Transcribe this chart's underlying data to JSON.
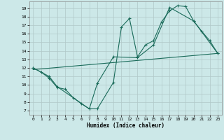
{
  "xlabel": "Humidex (Indice chaleur)",
  "ylabel": "",
  "bg_color": "#cce8e8",
  "grid_color": "#b0c8c8",
  "line_color": "#1a6b5a",
  "xlim": [
    -0.5,
    23.5
  ],
  "ylim": [
    6.5,
    19.8
  ],
  "xticks": [
    0,
    1,
    2,
    3,
    4,
    5,
    6,
    7,
    8,
    9,
    10,
    11,
    12,
    13,
    14,
    15,
    16,
    17,
    18,
    19,
    20,
    21,
    22,
    23
  ],
  "yticks": [
    7,
    8,
    9,
    10,
    11,
    12,
    13,
    14,
    15,
    16,
    17,
    18,
    19
  ],
  "line1_x": [
    0,
    1,
    2,
    3,
    4,
    5,
    6,
    7,
    8,
    10,
    11,
    12,
    13,
    14,
    15,
    16,
    17,
    18,
    19,
    20,
    21,
    22,
    23
  ],
  "line1_y": [
    12,
    11.5,
    10.8,
    9.7,
    9.5,
    8.5,
    7.8,
    7.2,
    7.2,
    10.3,
    16.8,
    17.8,
    13.3,
    14.7,
    15.2,
    17.4,
    18.7,
    19.3,
    19.2,
    17.5,
    16.3,
    15.2,
    13.7
  ],
  "line2_x": [
    0,
    2,
    3,
    7,
    8,
    10,
    13,
    15,
    17,
    20,
    23
  ],
  "line2_y": [
    12,
    11,
    9.8,
    7.2,
    10.2,
    13.3,
    13.2,
    14.7,
    19.1,
    17.5,
    13.7
  ],
  "line3_x": [
    0,
    23
  ],
  "line3_y": [
    11.8,
    13.7
  ]
}
